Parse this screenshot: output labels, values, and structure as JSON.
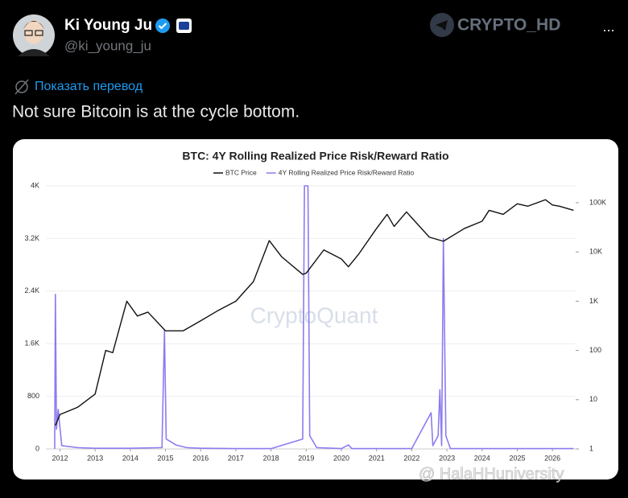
{
  "tweet": {
    "author": "Ki Young Ju",
    "handle": "@ki_young_ju",
    "translate": "Показать перевод",
    "text": "Not sure Bitcoin is at the cycle bottom.",
    "watermark": "CRYPTO_HD",
    "more": "...",
    "image_watermark": "@ HalaHHuniversity"
  },
  "chart_data": {
    "type": "line",
    "title": "BTC: 4Y Rolling Realized Price Risk/Reward Ratio",
    "watermark": "CryptoQuant",
    "xlim": [
      2011.6,
      2026.66
    ],
    "xticks": [
      2012,
      2013,
      2014,
      2015,
      2016,
      2017,
      2018,
      2019,
      2020,
      2021,
      2022,
      2023,
      2024,
      2025,
      2026
    ],
    "ylim": [
      0,
      4000
    ],
    "yticks": [
      0,
      800,
      {
        "value": 1600,
        "label": "1.6K"
      },
      {
        "value": 2400,
        "label": "2.4K"
      },
      {
        "value": 3200,
        "label": "3.2K"
      },
      {
        "value": 4000,
        "label": "4K"
      }
    ],
    "y2lim": [
      1,
      220000
    ],
    "y2_log": true,
    "y2ticks": [
      1,
      10,
      100,
      {
        "value": 1000,
        "label": "1K"
      },
      {
        "value": 10000,
        "label": "10K"
      },
      {
        "value": 100000,
        "label": "100K"
      }
    ],
    "grid": true,
    "series": [
      {
        "name": "BTC Price",
        "color": "#111111",
        "axis": "y2",
        "x": [
          2011.87,
          2012.0,
          2012.5,
          2013.0,
          2013.3,
          2013.5,
          2013.9,
          2014.2,
          2014.5,
          2015.0,
          2015.5,
          2016.0,
          2016.5,
          2017.0,
          2017.5,
          2017.95,
          2018.3,
          2018.9,
          2019.0,
          2019.5,
          2020.0,
          2020.2,
          2020.5,
          2021.0,
          2021.3,
          2021.5,
          2021.85,
          2022.5,
          2022.9,
          2023.5,
          2024.0,
          2024.2,
          2024.6,
          2025.0,
          2025.3,
          2025.8,
          2026.0,
          2026.2,
          2026.6
        ],
        "values": [
          3,
          5,
          7,
          13,
          100,
          90,
          1000,
          500,
          600,
          250,
          250,
          400,
          650,
          1000,
          2500,
          17000,
          8000,
          3500,
          3700,
          11000,
          7200,
          5000,
          9200,
          30000,
          58000,
          33000,
          65000,
          20000,
          16500,
          30000,
          42000,
          70000,
          58000,
          95000,
          85000,
          115000,
          90000,
          85000,
          70000
        ]
      },
      {
        "name": "4Y Rolling Realized Price Risk/Reward Ratio",
        "color": "#8b7cf0",
        "x": [
          2011.85,
          2011.87,
          2011.9,
          2011.95,
          2012.05,
          2012.5,
          2013,
          2014,
          2014.9,
          2014.97,
          2015.02,
          2015.3,
          2015.6,
          2016,
          2017,
          2018,
          2018.9,
          2018.95,
          2019.05,
          2019.1,
          2019.3,
          2020,
          2020.2,
          2020.3,
          2021,
          2022,
          2022.55,
          2022.6,
          2022.75,
          2022.8,
          2022.85,
          2022.9,
          2022.97,
          2023.1,
          2024,
          2025,
          2026,
          2026.6
        ],
        "values": [
          0,
          2350,
          300,
          600,
          50,
          20,
          10,
          10,
          20,
          1800,
          150,
          60,
          20,
          10,
          5,
          5,
          150,
          4000,
          4000,
          200,
          20,
          5,
          60,
          5,
          5,
          5,
          550,
          50,
          200,
          900,
          50,
          3200,
          200,
          5,
          5,
          5,
          5,
          5
        ]
      }
    ]
  }
}
